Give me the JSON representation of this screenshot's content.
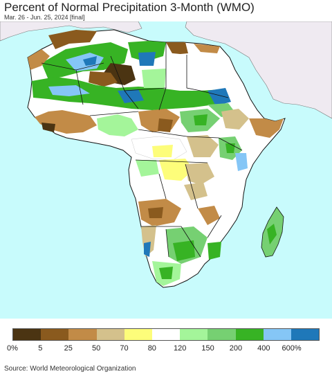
{
  "title": "Percent of Normal Precipitation 3-Month (WMO)",
  "subtitle": "Mar. 26 - Jun. 25, 2024 [final]",
  "source": "Source: World Meteorological Organization",
  "legend": {
    "labels": [
      "0%",
      "5",
      "25",
      "50",
      "70",
      "80",
      "120",
      "150",
      "200",
      "400",
      "600%"
    ],
    "colors": [
      "#4b3412",
      "#8a5a1e",
      "#c28b47",
      "#d4c18c",
      "#fdfd7a",
      "#ffffff",
      "#a4f59a",
      "#76d072",
      "#37b324",
      "#85c6f6",
      "#1f78b9"
    ]
  },
  "colors": {
    "ocean": "#c8fbfc",
    "non_africa_land": "#efeaf1",
    "border": "#111111"
  }
}
